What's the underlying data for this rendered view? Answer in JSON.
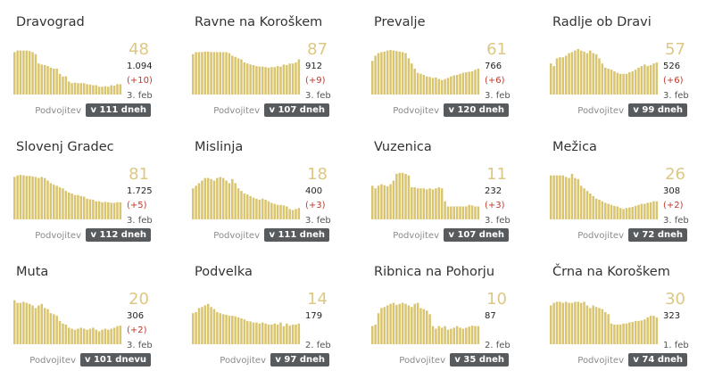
{
  "colors": {
    "bar": "#d9c46f",
    "accent": "#dcc884",
    "delta": "#c0392b",
    "badge_bg": "#585b5e"
  },
  "chart_data": [
    {
      "type": "bar",
      "title": "Dravograd",
      "active": "48",
      "total": "1.094",
      "delta": "(+10)",
      "date": "3. feb",
      "doubling_label": "Podvojitev",
      "doubling": "v 111 dneh",
      "values": [
        82,
        85,
        85,
        85,
        85,
        84,
        82,
        78,
        60,
        58,
        57,
        55,
        52,
        50,
        50,
        40,
        35,
        35,
        25,
        22,
        23,
        22,
        22,
        22,
        20,
        19,
        18,
        18,
        15,
        15,
        16,
        15,
        18,
        17,
        20,
        20
      ]
    },
    {
      "type": "bar",
      "title": "Ravne na Koroškem",
      "active": "87",
      "total": "912",
      "delta": "(+9)",
      "date": "3. feb",
      "doubling_label": "Podvojitev",
      "doubling": "v 107 dneh",
      "values": [
        78,
        82,
        82,
        82,
        83,
        83,
        82,
        82,
        82,
        82,
        82,
        82,
        80,
        75,
        73,
        70,
        68,
        62,
        60,
        58,
        57,
        55,
        54,
        54,
        53,
        52,
        53,
        53,
        55,
        54,
        58,
        57,
        60,
        60,
        62,
        68
      ]
    },
    {
      "type": "bar",
      "title": "Prevalje",
      "active": "61",
      "total": "766",
      "delta": "(+6)",
      "date": "3. feb",
      "doubling_label": "Podvojitev",
      "doubling": "v 120 dneh",
      "values": [
        65,
        75,
        80,
        82,
        83,
        85,
        86,
        85,
        84,
        83,
        82,
        80,
        70,
        60,
        50,
        42,
        40,
        38,
        35,
        34,
        32,
        33,
        30,
        28,
        30,
        32,
        35,
        37,
        38,
        40,
        42,
        43,
        44,
        45,
        48,
        50
      ]
    },
    {
      "type": "bar",
      "title": "Radlje ob Dravi",
      "active": "57",
      "total": "526",
      "delta": "(+6)",
      "date": "3. feb",
      "doubling_label": "Podvojitev",
      "doubling": "v 99 dneh",
      "values": [
        60,
        55,
        70,
        72,
        72,
        75,
        80,
        82,
        85,
        88,
        85,
        83,
        80,
        85,
        80,
        78,
        70,
        60,
        52,
        50,
        48,
        45,
        42,
        40,
        40,
        40,
        43,
        45,
        48,
        52,
        55,
        58,
        55,
        57,
        60,
        62
      ]
    },
    {
      "type": "bar",
      "title": "Slovenj Gradec",
      "active": "81",
      "total": "1.725",
      "delta": "(+5)",
      "date": "3. feb",
      "doubling_label": "Podvojitev",
      "doubling": "v 112 dneh",
      "values": [
        82,
        85,
        86,
        85,
        84,
        84,
        83,
        82,
        80,
        82,
        80,
        75,
        70,
        67,
        65,
        62,
        60,
        55,
        52,
        50,
        47,
        47,
        45,
        44,
        40,
        39,
        38,
        35,
        35,
        33,
        34,
        33,
        32,
        32,
        33,
        33
      ]
    },
    {
      "type": "bar",
      "title": "Mislinja",
      "active": "18",
      "total": "400",
      "delta": "(+3)",
      "date": "3. feb",
      "doubling_label": "Podvojitev",
      "doubling": "v 111 dneh",
      "values": [
        60,
        65,
        70,
        75,
        80,
        80,
        78,
        75,
        80,
        82,
        80,
        75,
        70,
        78,
        70,
        60,
        55,
        50,
        48,
        45,
        42,
        40,
        38,
        40,
        38,
        35,
        32,
        30,
        28,
        28,
        27,
        25,
        20,
        18,
        20,
        22
      ]
    },
    {
      "type": "bar",
      "title": "Vuzenica",
      "active": "11",
      "total": "232",
      "delta": "(+3)",
      "date": "3. feb",
      "doubling_label": "Podvojitev",
      "doubling": "v 107 dneh",
      "values": [
        65,
        60,
        65,
        68,
        66,
        64,
        68,
        75,
        88,
        90,
        90,
        88,
        85,
        62,
        62,
        60,
        60,
        60,
        58,
        60,
        58,
        60,
        62,
        60,
        35,
        25,
        25,
        25,
        25,
        25,
        25,
        25,
        28,
        27,
        25,
        25
      ]
    },
    {
      "type": "bar",
      "title": "Mežica",
      "active": "26",
      "total": "308",
      "delta": "(+2)",
      "date": "3. feb",
      "doubling_label": "Podvojitev",
      "doubling": "v 72 dneh",
      "values": [
        85,
        85,
        85,
        85,
        85,
        82,
        80,
        88,
        80,
        78,
        65,
        60,
        55,
        50,
        45,
        40,
        38,
        35,
        32,
        30,
        28,
        26,
        25,
        22,
        20,
        22,
        23,
        24,
        26,
        28,
        30,
        30,
        32,
        33,
        35,
        35
      ]
    },
    {
      "type": "bar",
      "title": "Muta",
      "active": "20",
      "total": "306",
      "delta": "(+2)",
      "date": "3. feb",
      "doubling_label": "Podvojitev",
      "doubling": "v 101 dnevu",
      "values": [
        85,
        80,
        80,
        82,
        80,
        78,
        75,
        70,
        75,
        78,
        70,
        68,
        60,
        58,
        55,
        45,
        40,
        38,
        32,
        30,
        28,
        30,
        32,
        30,
        28,
        30,
        32,
        28,
        25,
        28,
        30,
        28,
        30,
        32,
        35,
        36
      ]
    },
    {
      "type": "bar",
      "title": "Podvelka",
      "active": "14",
      "total": "179",
      "delta": "",
      "date": "2. feb",
      "doubling_label": "Podvojitev",
      "doubling": "v 97 dneh",
      "values": [
        60,
        62,
        70,
        72,
        75,
        78,
        72,
        68,
        62,
        60,
        58,
        57,
        55,
        55,
        54,
        52,
        50,
        48,
        45,
        44,
        42,
        42,
        40,
        42,
        40,
        38,
        38,
        40,
        38,
        42,
        35,
        40,
        36,
        38,
        38,
        40
      ]
    },
    {
      "type": "bar",
      "title": "Ribnica na Pohorju",
      "active": "10",
      "total": "87",
      "delta": "",
      "date": "2. feb",
      "doubling_label": "Podvojitev",
      "doubling": "v 35 dneh",
      "values": [
        35,
        38,
        60,
        70,
        72,
        75,
        78,
        80,
        76,
        78,
        80,
        78,
        75,
        72,
        78,
        80,
        70,
        68,
        65,
        58,
        35,
        30,
        35,
        32,
        35,
        28,
        30,
        32,
        35,
        32,
        30,
        32,
        34,
        36,
        35,
        35
      ]
    },
    {
      "type": "bar",
      "title": "Črna na Koroškem",
      "active": "30",
      "total": "323",
      "delta": "",
      "date": "1. feb",
      "doubling_label": "Podvojitev",
      "doubling": "v 74 dneh",
      "values": [
        75,
        80,
        82,
        82,
        80,
        82,
        80,
        80,
        82,
        82,
        80,
        82,
        75,
        70,
        75,
        72,
        70,
        68,
        62,
        58,
        40,
        38,
        38,
        38,
        40,
        40,
        42,
        43,
        45,
        45,
        46,
        48,
        52,
        55,
        55,
        52
      ]
    }
  ]
}
